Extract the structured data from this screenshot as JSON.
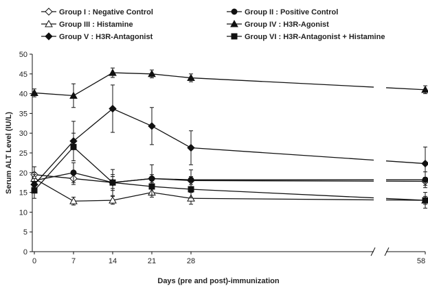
{
  "chart_data": {
    "type": "line",
    "xlabel": "Days (pre and post)-immunization",
    "ylabel": "Serum ALT Level (IU/L)",
    "ylim": [
      0,
      50
    ],
    "y_ticks": [
      "0",
      "5",
      "10",
      "15",
      "20",
      "25",
      "30",
      "35",
      "40",
      "45",
      "50"
    ],
    "x": [
      0,
      7,
      14,
      21,
      28,
      58
    ],
    "x_tick_labels": [
      "0",
      "7",
      "14",
      "21",
      "28",
      "58"
    ],
    "x_axis_break_between": [
      28,
      58
    ],
    "grid": false,
    "legend_position": "top",
    "series": [
      {
        "name": "Group I : Negative Control",
        "marker": "diamond-open",
        "values": [
          19.5,
          18.5,
          17.5,
          18.5,
          18.0,
          17.8
        ],
        "errors": [
          2.0,
          1.5,
          1.5,
          1.0,
          1.0,
          1.0
        ]
      },
      {
        "name": "Group II : Positive Control",
        "marker": "circle-filled",
        "values": [
          18.0,
          20.0,
          17.5,
          18.5,
          18.2,
          18.2
        ],
        "errors": [
          1.5,
          2.5,
          2.0,
          3.5,
          2.5,
          2.0
        ]
      },
      {
        "name": "Group III : Histamine",
        "marker": "triangle-open",
        "values": [
          18.5,
          12.8,
          13.0,
          15.0,
          13.5,
          13.0
        ],
        "errors": [
          1.5,
          1.0,
          1.0,
          1.2,
          1.5,
          1.0
        ]
      },
      {
        "name": "Group IV : H3R-Agonist",
        "marker": "triangle-filled",
        "values": [
          40.2,
          39.5,
          45.3,
          45.0,
          44.0,
          41.0
        ],
        "errors": [
          1.0,
          3.0,
          1.2,
          1.0,
          1.0,
          1.0
        ]
      },
      {
        "name": "Group V : H3R-Antagonist",
        "marker": "diamond-filled",
        "values": [
          17.0,
          28.0,
          36.2,
          31.8,
          26.3,
          22.3
        ],
        "errors": [
          1.5,
          5.0,
          6.0,
          4.7,
          4.3,
          4.2
        ]
      },
      {
        "name": "Group VI : H3R-Antagonist + Histamine",
        "marker": "square-filled",
        "values": [
          15.5,
          26.5,
          17.5,
          16.5,
          15.8,
          13.0
        ],
        "errors": [
          2.0,
          3.5,
          3.3,
          2.2,
          2.2,
          2.0
        ]
      }
    ]
  }
}
